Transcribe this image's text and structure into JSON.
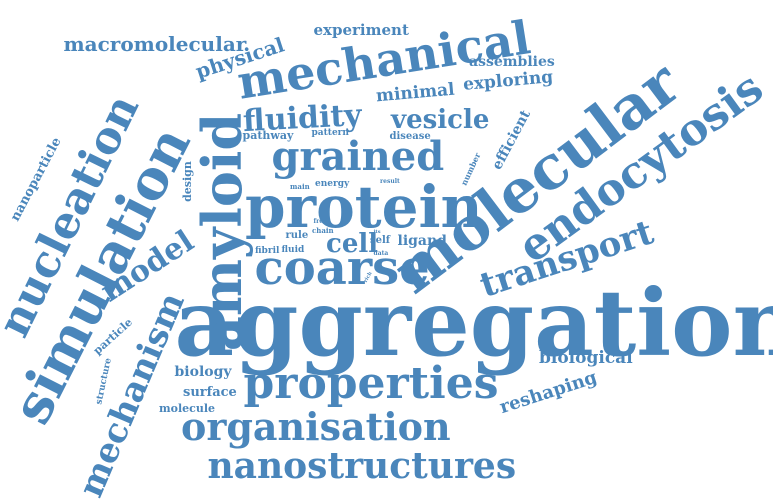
{
  "cloud": {
    "color": "#4a86bb",
    "words": [
      {
        "text": "aggregation"
      },
      {
        "text": "protein"
      },
      {
        "text": "amyloid"
      },
      {
        "text": "molecular"
      },
      {
        "text": "properties"
      },
      {
        "text": "coarse"
      },
      {
        "text": "mechanical"
      },
      {
        "text": "nanostructures"
      },
      {
        "text": "organisation"
      },
      {
        "text": "simulation"
      },
      {
        "text": "nucleation"
      },
      {
        "text": "endocytosis"
      },
      {
        "text": "grained"
      },
      {
        "text": "mechanism"
      },
      {
        "text": "transport"
      },
      {
        "text": "fluidity"
      },
      {
        "text": "vesicle"
      },
      {
        "text": "model"
      },
      {
        "text": "macromolecular"
      },
      {
        "text": "cell"
      },
      {
        "text": "physical"
      },
      {
        "text": "reshaping"
      },
      {
        "text": "biological"
      },
      {
        "text": "experiment"
      },
      {
        "text": "assemblies"
      },
      {
        "text": "exploring"
      },
      {
        "text": "minimal"
      },
      {
        "text": "efficient"
      },
      {
        "text": "ligand"
      },
      {
        "text": "biology"
      },
      {
        "text": "surface"
      },
      {
        "text": "molecule"
      },
      {
        "text": "particle"
      },
      {
        "text": "nanoparticle"
      },
      {
        "text": "design"
      },
      {
        "text": "structure"
      },
      {
        "text": "pathway"
      },
      {
        "text": "pattern"
      },
      {
        "text": "disease"
      },
      {
        "text": "number"
      },
      {
        "text": "rule"
      },
      {
        "text": "chain"
      },
      {
        "text": "fibril"
      },
      {
        "text": "fluid"
      },
      {
        "text": "self"
      },
      {
        "text": "energy"
      },
      {
        "text": "main"
      },
      {
        "text": "result"
      },
      {
        "text": "free"
      },
      {
        "text": "rate"
      },
      {
        "text": "data"
      },
      {
        "text": "rich"
      },
      {
        "text": "its"
      }
    ]
  }
}
